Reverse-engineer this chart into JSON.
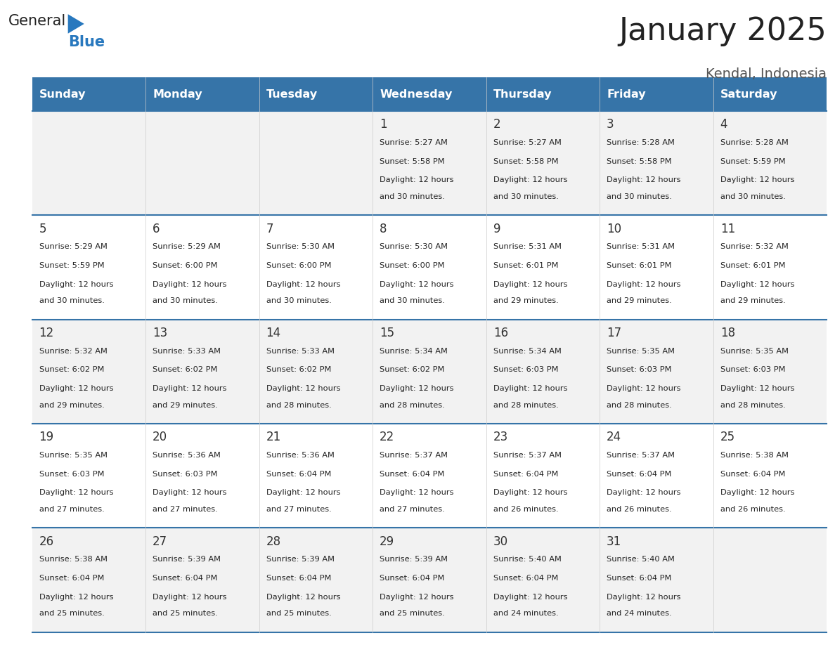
{
  "title": "January 2025",
  "subtitle": "Kendal, Indonesia",
  "days_of_week": [
    "Sunday",
    "Monday",
    "Tuesday",
    "Wednesday",
    "Thursday",
    "Friday",
    "Saturday"
  ],
  "header_bg": "#3674A8",
  "header_text": "#ffffff",
  "row_bg_odd": "#f2f2f2",
  "row_bg_even": "#ffffff",
  "cell_text_color": "#222222",
  "day_number_color": "#333333",
  "border_color": "#3674A8",
  "calendar_data": [
    [
      null,
      null,
      null,
      {
        "day": 1,
        "sunrise": "5:27 AM",
        "sunset": "5:58 PM",
        "daylight": "12 hours\nand 30 minutes."
      },
      {
        "day": 2,
        "sunrise": "5:27 AM",
        "sunset": "5:58 PM",
        "daylight": "12 hours\nand 30 minutes."
      },
      {
        "day": 3,
        "sunrise": "5:28 AM",
        "sunset": "5:58 PM",
        "daylight": "12 hours\nand 30 minutes."
      },
      {
        "day": 4,
        "sunrise": "5:28 AM",
        "sunset": "5:59 PM",
        "daylight": "12 hours\nand 30 minutes."
      }
    ],
    [
      {
        "day": 5,
        "sunrise": "5:29 AM",
        "sunset": "5:59 PM",
        "daylight": "12 hours\nand 30 minutes."
      },
      {
        "day": 6,
        "sunrise": "5:29 AM",
        "sunset": "6:00 PM",
        "daylight": "12 hours\nand 30 minutes."
      },
      {
        "day": 7,
        "sunrise": "5:30 AM",
        "sunset": "6:00 PM",
        "daylight": "12 hours\nand 30 minutes."
      },
      {
        "day": 8,
        "sunrise": "5:30 AM",
        "sunset": "6:00 PM",
        "daylight": "12 hours\nand 30 minutes."
      },
      {
        "day": 9,
        "sunrise": "5:31 AM",
        "sunset": "6:01 PM",
        "daylight": "12 hours\nand 29 minutes."
      },
      {
        "day": 10,
        "sunrise": "5:31 AM",
        "sunset": "6:01 PM",
        "daylight": "12 hours\nand 29 minutes."
      },
      {
        "day": 11,
        "sunrise": "5:32 AM",
        "sunset": "6:01 PM",
        "daylight": "12 hours\nand 29 minutes."
      }
    ],
    [
      {
        "day": 12,
        "sunrise": "5:32 AM",
        "sunset": "6:02 PM",
        "daylight": "12 hours\nand 29 minutes."
      },
      {
        "day": 13,
        "sunrise": "5:33 AM",
        "sunset": "6:02 PM",
        "daylight": "12 hours\nand 29 minutes."
      },
      {
        "day": 14,
        "sunrise": "5:33 AM",
        "sunset": "6:02 PM",
        "daylight": "12 hours\nand 28 minutes."
      },
      {
        "day": 15,
        "sunrise": "5:34 AM",
        "sunset": "6:02 PM",
        "daylight": "12 hours\nand 28 minutes."
      },
      {
        "day": 16,
        "sunrise": "5:34 AM",
        "sunset": "6:03 PM",
        "daylight": "12 hours\nand 28 minutes."
      },
      {
        "day": 17,
        "sunrise": "5:35 AM",
        "sunset": "6:03 PM",
        "daylight": "12 hours\nand 28 minutes."
      },
      {
        "day": 18,
        "sunrise": "5:35 AM",
        "sunset": "6:03 PM",
        "daylight": "12 hours\nand 28 minutes."
      }
    ],
    [
      {
        "day": 19,
        "sunrise": "5:35 AM",
        "sunset": "6:03 PM",
        "daylight": "12 hours\nand 27 minutes."
      },
      {
        "day": 20,
        "sunrise": "5:36 AM",
        "sunset": "6:03 PM",
        "daylight": "12 hours\nand 27 minutes."
      },
      {
        "day": 21,
        "sunrise": "5:36 AM",
        "sunset": "6:04 PM",
        "daylight": "12 hours\nand 27 minutes."
      },
      {
        "day": 22,
        "sunrise": "5:37 AM",
        "sunset": "6:04 PM",
        "daylight": "12 hours\nand 27 minutes."
      },
      {
        "day": 23,
        "sunrise": "5:37 AM",
        "sunset": "6:04 PM",
        "daylight": "12 hours\nand 26 minutes."
      },
      {
        "day": 24,
        "sunrise": "5:37 AM",
        "sunset": "6:04 PM",
        "daylight": "12 hours\nand 26 minutes."
      },
      {
        "day": 25,
        "sunrise": "5:38 AM",
        "sunset": "6:04 PM",
        "daylight": "12 hours\nand 26 minutes."
      }
    ],
    [
      {
        "day": 26,
        "sunrise": "5:38 AM",
        "sunset": "6:04 PM",
        "daylight": "12 hours\nand 25 minutes."
      },
      {
        "day": 27,
        "sunrise": "5:39 AM",
        "sunset": "6:04 PM",
        "daylight": "12 hours\nand 25 minutes."
      },
      {
        "day": 28,
        "sunrise": "5:39 AM",
        "sunset": "6:04 PM",
        "daylight": "12 hours\nand 25 minutes."
      },
      {
        "day": 29,
        "sunrise": "5:39 AM",
        "sunset": "6:04 PM",
        "daylight": "12 hours\nand 25 minutes."
      },
      {
        "day": 30,
        "sunrise": "5:40 AM",
        "sunset": "6:04 PM",
        "daylight": "12 hours\nand 24 minutes."
      },
      {
        "day": 31,
        "sunrise": "5:40 AM",
        "sunset": "6:04 PM",
        "daylight": "12 hours\nand 24 minutes."
      },
      null
    ]
  ],
  "logo_text_general": "General",
  "logo_text_blue": "Blue",
  "logo_blue_color": "#2878be"
}
